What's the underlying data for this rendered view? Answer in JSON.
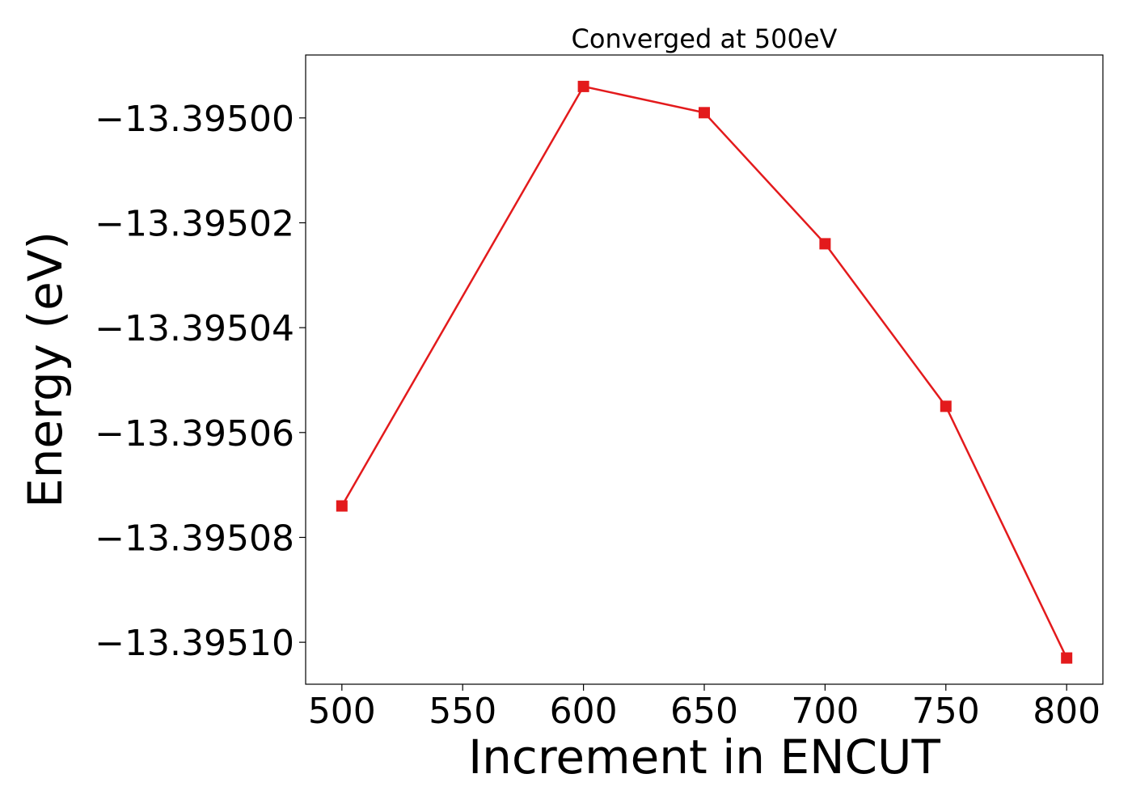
{
  "chart_data": {
    "type": "line",
    "title": "Converged at 500eV",
    "xlabel": "Increment in ENCUT",
    "ylabel": "Energy (eV)",
    "x": [
      500,
      600,
      650,
      700,
      750,
      800
    ],
    "series": [
      {
        "values": [
          -13.395074,
          -13.394994,
          -13.394999,
          -13.395024,
          -13.395055,
          -13.395103
        ],
        "color": "#e31a1c",
        "marker": "square"
      }
    ],
    "xlim": [
      485,
      815
    ],
    "ylim": [
      -13.395108,
      -13.394988
    ],
    "x_ticks": [
      500,
      550,
      600,
      650,
      700,
      750,
      800
    ],
    "x_tick_labels": [
      "500",
      "550",
      "600",
      "650",
      "700",
      "750",
      "800"
    ],
    "y_ticks": [
      -13.3951,
      -13.39508,
      -13.39506,
      -13.39504,
      -13.39502,
      -13.395
    ],
    "y_tick_labels": [
      "−13.39510",
      "−13.39508",
      "−13.39506",
      "−13.39504",
      "−13.39502",
      "−13.39500"
    ],
    "grid": false,
    "legend": "none"
  }
}
